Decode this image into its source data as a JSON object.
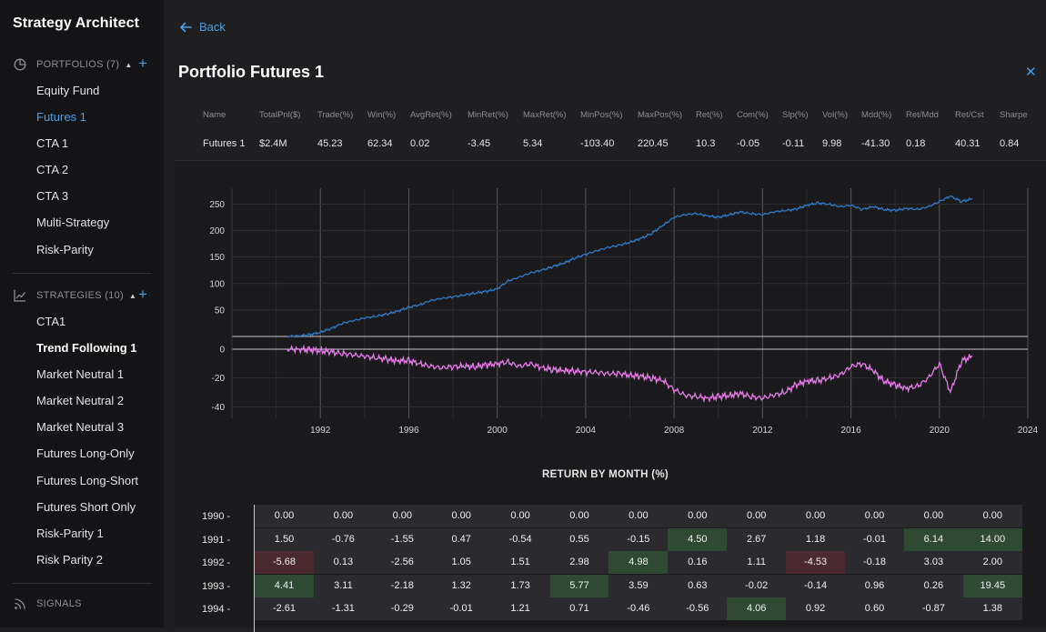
{
  "sidebar": {
    "title": "Strategy Architect",
    "portfolios": {
      "label": "PORTFOLIOS (7)",
      "items": [
        "Equity Fund",
        "Futures 1",
        "CTA 1",
        "CTA 2",
        "CTA 3",
        "Multi-Strategy",
        "Risk-Parity"
      ],
      "active": 1
    },
    "strategies": {
      "label": "STRATEGIES (10)",
      "items": [
        "CTA1",
        "Trend Following 1",
        "Market Neutral 1",
        "Market Neutral 2",
        "Market Neutral 3",
        "Futures Long-Only",
        "Futures Long-Short",
        "Futures Short Only",
        "Risk-Parity 1",
        "Risk Parity 2"
      ],
      "active": 1
    },
    "signals": {
      "label": "SIGNALS"
    }
  },
  "header": {
    "back_label": "Back",
    "title": "Portfolio Futures 1",
    "close_icon": "close-icon"
  },
  "stats": {
    "headers": [
      "Name",
      "TotalPnl($)",
      "Trade(%)",
      "Win(%)",
      "AvgRet(%)",
      "MinRet(%)",
      "MaxRet(%)",
      "MinPos(%)",
      "MaxPos(%)",
      "Ret(%)",
      "Com(%)",
      "Slp(%)",
      "Vol(%)",
      "Mdd(%)",
      "Ret/Mdd",
      "Ret/Cst",
      "Sharpe"
    ],
    "values": [
      "Futures 1",
      "$2.4M",
      "45.23",
      "62.34",
      "0.02",
      "-3.45",
      "5.34",
      "-103.40",
      "220.45",
      "10.3",
      "-0.05",
      "-0.11",
      "9.98",
      "-41.30",
      "0.18",
      "40.31",
      "0.84"
    ]
  },
  "chart_data": {
    "type": "line",
    "x_ticks": [
      1992,
      1996,
      2000,
      2004,
      2008,
      2012,
      2016,
      2020,
      2024
    ],
    "top": {
      "yticks": [
        50,
        100,
        150,
        200,
        250
      ],
      "ylim": [
        0,
        280
      ],
      "series": [
        {
          "color": "#2f78c4",
          "x": [
            1990.5,
            1991,
            1991.5,
            1992,
            1992.5,
            1993,
            1993.5,
            1994,
            1994.5,
            1995,
            1995.5,
            1996,
            1996.5,
            1997,
            1997.5,
            1998,
            1998.5,
            1999,
            1999.5,
            2000,
            2000.5,
            2001,
            2001.5,
            2002,
            2002.5,
            2003,
            2003.5,
            2004,
            2004.5,
            2005,
            2005.5,
            2006,
            2006.5,
            2007,
            2007.5,
            2008,
            2008.5,
            2009,
            2009.5,
            2010,
            2010.5,
            2011,
            2011.5,
            2012,
            2012.5,
            2013,
            2013.5,
            2014,
            2014.5,
            2015,
            2015.5,
            2016,
            2016.5,
            2017,
            2017.5,
            2018,
            2018.5,
            2019,
            2019.5,
            2020,
            2020.5,
            2021,
            2021.5
          ],
          "y": [
            0,
            1,
            3,
            8,
            15,
            25,
            30,
            35,
            38,
            42,
            48,
            55,
            60,
            68,
            72,
            75,
            78,
            82,
            85,
            90,
            105,
            112,
            120,
            125,
            132,
            138,
            148,
            155,
            162,
            168,
            172,
            178,
            185,
            195,
            210,
            225,
            230,
            232,
            228,
            225,
            230,
            235,
            232,
            230,
            235,
            238,
            240,
            248,
            252,
            250,
            245,
            248,
            240,
            245,
            240,
            238,
            242,
            240,
            245,
            255,
            265,
            255,
            260
          ]
        }
      ]
    },
    "bottom": {
      "yticks": [
        0,
        -20,
        -40
      ],
      "ylim": [
        -48,
        0
      ],
      "series": [
        {
          "color": "#e67ae8",
          "x": [
            1990.5,
            1991,
            1991.5,
            1992,
            1992.5,
            1993,
            1993.5,
            1994,
            1994.5,
            1995,
            1995.5,
            1996,
            1996.5,
            1997,
            1997.5,
            1998,
            1998.5,
            1999,
            1999.5,
            2000,
            2000.5,
            2001,
            2001.5,
            2002,
            2002.5,
            2003,
            2003.5,
            2004,
            2004.5,
            2005,
            2005.5,
            2006,
            2006.5,
            2007,
            2007.5,
            2008,
            2008.5,
            2009,
            2009.5,
            2010,
            2010.5,
            2011,
            2011.5,
            2012,
            2012.5,
            2013,
            2013.5,
            2014,
            2014.5,
            2015,
            2015.5,
            2016,
            2016.5,
            2017,
            2017.5,
            2018,
            2018.5,
            2019,
            2019.5,
            2020,
            2020.5,
            2021,
            2021.5
          ],
          "y": [
            0,
            0,
            -0.5,
            -1,
            -2,
            -3,
            -4,
            -5,
            -6,
            -7,
            -8,
            -8,
            -10,
            -12,
            -13,
            -12,
            -12,
            -12,
            -11,
            -10,
            -9,
            -12,
            -10,
            -13,
            -14,
            -15,
            -15,
            -16,
            -16,
            -17,
            -17,
            -18,
            -19,
            -20,
            -22,
            -28,
            -32,
            -33,
            -34,
            -33,
            -32,
            -31,
            -33,
            -34,
            -32,
            -30,
            -25,
            -22,
            -22,
            -20,
            -18,
            -12,
            -10,
            -15,
            -22,
            -25,
            -27,
            -26,
            -20,
            -10,
            -30,
            -8,
            -5
          ]
        }
      ]
    }
  },
  "heatmap": {
    "title": "RETURN BY MONTH (%)",
    "rows": [
      {
        "year": "1990 -",
        "values": [
          "0.00",
          "0.00",
          "0.00",
          "0.00",
          "0.00",
          "0.00",
          "0.00",
          "0.00",
          "0.00",
          "0.00",
          "0.00",
          "0.00",
          "0.00"
        ]
      },
      {
        "year": "1991 -",
        "values": [
          "1.50",
          "-0.76",
          "-1.55",
          "0.47",
          "-0.54",
          "0.55",
          "-0.15",
          "4.50",
          "2.67",
          "1.18",
          "-0.01",
          "6.14",
          "14.00"
        ]
      },
      {
        "year": "1992 -",
        "values": [
          "-5.68",
          "0.13",
          "-2.56",
          "1.05",
          "1.51",
          "2.98",
          "4.98",
          "0.16",
          "1.11",
          "-4.53",
          "-0.18",
          "3.03",
          "2.00"
        ]
      },
      {
        "year": "1993 -",
        "values": [
          "4.41",
          "3.11",
          "-2.18",
          "1.32",
          "1.73",
          "5.77",
          "3.59",
          "0.63",
          "-0.02",
          "-0.14",
          "0.96",
          "0.26",
          "19.45"
        ]
      },
      {
        "year": "1994 -",
        "values": [
          "-2.61",
          "-1.31",
          "-0.29",
          "-0.01",
          "1.21",
          "0.71",
          "-0.46",
          "-0.56",
          "4.06",
          "0.92",
          "0.60",
          "-0.87",
          "1.38"
        ]
      }
    ]
  },
  "colors": {
    "accent": "#4a9fe3",
    "equity_line": "#2f78c4",
    "drawdown_line": "#e67ae8",
    "positive": "#2f4a33",
    "negative": "#4a2a2e",
    "neutral": "#2a2a2f"
  }
}
